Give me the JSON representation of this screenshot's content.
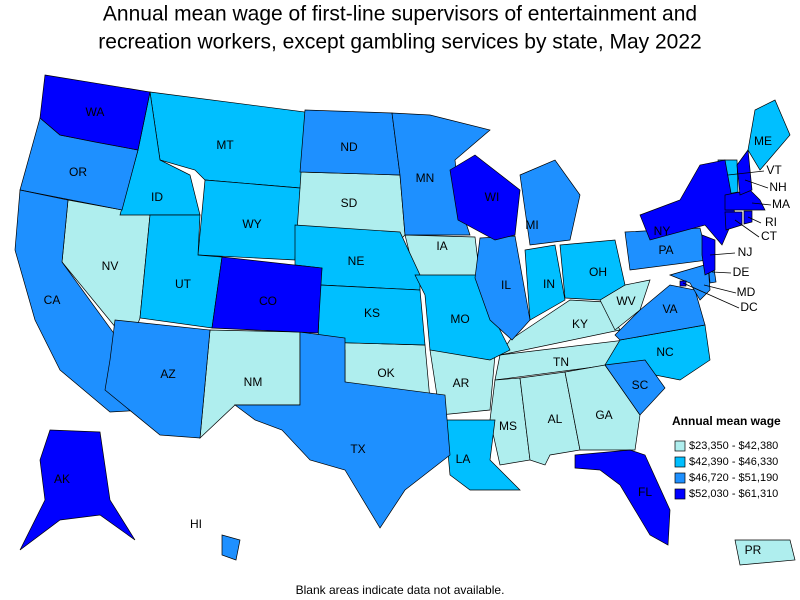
{
  "title": [
    "Annual mean wage of first-line supervisors of entertainment and",
    "recreation workers, except gambling services by state, May 2022"
  ],
  "note": "Blank areas indicate data not available.",
  "legend": {
    "title": "Annual mean wage",
    "items": [
      {
        "label": "$23,350 - $42,380",
        "color": "#afeeee",
        "states": [
          "NV",
          "SD",
          "IA",
          "NM",
          "OK",
          "AR",
          "TN",
          "KY",
          "WV",
          "MS",
          "AL",
          "GA",
          "PR"
        ]
      },
      {
        "label": "$42,390 - $46,330",
        "color": "#00bfff",
        "states": [
          "MT",
          "ID",
          "WY",
          "UT",
          "NE",
          "KS",
          "MO",
          "IN",
          "OH",
          "NC",
          "LA",
          "VT",
          "ME"
        ]
      },
      {
        "label": "$46,720 - $51,190",
        "color": "#1e90ff",
        "states": [
          "OR",
          "CA",
          "ND",
          "MN",
          "MI",
          "IL",
          "PA",
          "VA",
          "AZ",
          "TX",
          "SC",
          "HI",
          "DE",
          "MD"
        ]
      },
      {
        "label": "$52,030 - $61,310",
        "color": "#0000ff",
        "states": [
          "WA",
          "CO",
          "WI",
          "NY",
          "AK",
          "FL",
          "NJ",
          "MA",
          "CT",
          "RI",
          "NH",
          "DC"
        ]
      }
    ]
  }
}
